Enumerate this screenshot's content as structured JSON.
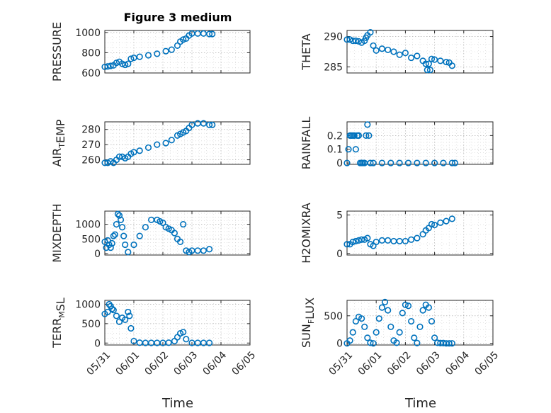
{
  "title": "Figure 3 medium",
  "xlabel": "Time",
  "xtick_labels": [
    "05/31",
    "06/01",
    "06/02",
    "06/03",
    "06/04",
    "06/05"
  ],
  "marker_color": "#0072BD",
  "chart_data": [
    {
      "type": "scatter",
      "ylabel_parts": [
        [
          "PRESSURE",
          ""
        ]
      ],
      "yticks": [
        600,
        800,
        1000
      ],
      "ytick_labels": [
        "600",
        "800",
        "1000"
      ],
      "ylim": [
        600,
        1020
      ],
      "x": [
        0,
        0.1,
        0.2,
        0.3,
        0.4,
        0.5,
        0.6,
        0.7,
        0.8,
        0.9,
        1.0,
        1.2,
        1.5,
        1.8,
        2.1,
        2.3,
        2.5,
        2.6,
        2.7,
        2.8,
        2.9,
        3.0,
        3.2,
        3.4,
        3.6,
        3.7
      ],
      "y": [
        660,
        665,
        670,
        675,
        700,
        710,
        690,
        680,
        690,
        740,
        750,
        760,
        775,
        790,
        815,
        830,
        870,
        910,
        930,
        940,
        970,
        990,
        990,
        990,
        985,
        985
      ]
    },
    {
      "type": "scatter",
      "ylabel_parts": [
        [
          "THETA",
          ""
        ]
      ],
      "yticks": [
        285,
        290
      ],
      "ytick_labels": [
        "285",
        "290"
      ],
      "ylim": [
        284,
        291
      ],
      "x": [
        0,
        0.1,
        0.2,
        0.3,
        0.4,
        0.5,
        0.6,
        0.65,
        0.7,
        0.8,
        0.9,
        1.0,
        1.2,
        1.4,
        1.6,
        1.8,
        2.0,
        2.2,
        2.4,
        2.6,
        2.7,
        2.75,
        2.8,
        2.85,
        2.9,
        3.0,
        3.2,
        3.4,
        3.5,
        3.6
      ],
      "y": [
        289.5,
        289.5,
        289.3,
        289.3,
        289.2,
        289.0,
        289.3,
        289.8,
        290.2,
        290.7,
        288.5,
        287.7,
        288.0,
        287.8,
        287.5,
        287.0,
        287.3,
        286.5,
        286.8,
        286.0,
        285.5,
        284.5,
        285.5,
        284.5,
        286.3,
        286.2,
        286.0,
        285.8,
        285.7,
        285.2
      ]
    },
    {
      "type": "scatter",
      "ylabel_parts": [
        [
          "AIR",
          "T"
        ],
        [
          "EMP",
          ""
        ]
      ],
      "yticks": [
        260,
        270,
        280
      ],
      "ytick_labels": [
        "260",
        "270",
        "280"
      ],
      "ylim": [
        257,
        285
      ],
      "x": [
        0,
        0.1,
        0.2,
        0.3,
        0.4,
        0.5,
        0.6,
        0.7,
        0.8,
        0.9,
        1.0,
        1.2,
        1.5,
        1.8,
        2.1,
        2.3,
        2.5,
        2.6,
        2.7,
        2.8,
        2.9,
        3.0,
        3.2,
        3.4,
        3.6,
        3.7
      ],
      "y": [
        258,
        258,
        259,
        258,
        260,
        262,
        262,
        261,
        262,
        264,
        265,
        266,
        268,
        270,
        271,
        273,
        276,
        277,
        278,
        279,
        281,
        283,
        284,
        284,
        283,
        283
      ]
    },
    {
      "type": "scatter",
      "ylabel_parts": [
        [
          "RAINFALL",
          ""
        ]
      ],
      "yticks": [
        0,
        0.1,
        0.2
      ],
      "ytick_labels": [
        "0",
        "0.1",
        "0.2"
      ],
      "ylim": [
        -0.01,
        0.3
      ],
      "x": [
        0,
        0.05,
        0.1,
        0.15,
        0.2,
        0.25,
        0.3,
        0.35,
        0.4,
        0.45,
        0.5,
        0.55,
        0.6,
        0.65,
        0.7,
        0.75,
        0.8,
        0.9,
        1.2,
        1.5,
        1.8,
        2.1,
        2.4,
        2.7,
        3.0,
        3.3,
        3.6,
        3.7
      ],
      "y": [
        0,
        0.1,
        0.2,
        0.2,
        0.2,
        0.2,
        0.1,
        0.2,
        0.2,
        0,
        0,
        0,
        0,
        0.2,
        0.28,
        0.2,
        0,
        0,
        0,
        0,
        0,
        0,
        0,
        0,
        0,
        0,
        0,
        0
      ]
    },
    {
      "type": "scatter",
      "ylabel_parts": [
        [
          "MIXDEPTH",
          ""
        ]
      ],
      "yticks": [
        0,
        500,
        1000
      ],
      "ytick_labels": [
        "0",
        "500",
        "1000"
      ],
      "ylim": [
        -50,
        1450
      ],
      "x": [
        0,
        0.05,
        0.1,
        0.15,
        0.2,
        0.25,
        0.3,
        0.35,
        0.4,
        0.45,
        0.5,
        0.55,
        0.6,
        0.65,
        0.7,
        0.8,
        1.0,
        1.2,
        1.4,
        1.6,
        1.8,
        1.9,
        2.0,
        2.1,
        2.2,
        2.3,
        2.4,
        2.5,
        2.6,
        2.7,
        2.8,
        2.9,
        3.0,
        3.2,
        3.4,
        3.6
      ],
      "y": [
        400,
        200,
        450,
        300,
        200,
        350,
        600,
        650,
        1000,
        1350,
        1300,
        1150,
        900,
        600,
        300,
        50,
        300,
        600,
        900,
        1150,
        1150,
        1100,
        1050,
        900,
        850,
        800,
        700,
        500,
        400,
        1000,
        100,
        50,
        100,
        100,
        100,
        150
      ]
    },
    {
      "type": "scatter",
      "ylabel_parts": [
        [
          "H2OMIXRA",
          ""
        ]
      ],
      "yticks": [
        0,
        5
      ],
      "ytick_labels": [
        "0",
        "5"
      ],
      "ylim": [
        -0.2,
        5.5
      ],
      "x": [
        0,
        0.1,
        0.2,
        0.3,
        0.4,
        0.5,
        0.6,
        0.7,
        0.8,
        0.9,
        1.0,
        1.2,
        1.4,
        1.6,
        1.8,
        2.0,
        2.2,
        2.4,
        2.6,
        2.7,
        2.8,
        2.9,
        3.0,
        3.2,
        3.4,
        3.6
      ],
      "y": [
        1.2,
        1.2,
        1.5,
        1.6,
        1.7,
        1.8,
        1.8,
        2.0,
        1.2,
        1.0,
        1.5,
        1.7,
        1.7,
        1.6,
        1.6,
        1.6,
        1.8,
        2.0,
        2.5,
        3.0,
        3.3,
        3.8,
        3.7,
        4.0,
        4.2,
        4.5
      ]
    },
    {
      "type": "scatter",
      "ylabel_parts": [
        [
          "TERR",
          "M"
        ],
        [
          "SL",
          ""
        ]
      ],
      "yticks": [
        0,
        500,
        1000
      ],
      "ytick_labels": [
        "0",
        "500",
        "1000"
      ],
      "ylim": [
        -50,
        1100
      ],
      "x": [
        0,
        0.1,
        0.15,
        0.2,
        0.25,
        0.3,
        0.4,
        0.5,
        0.6,
        0.7,
        0.8,
        0.85,
        0.9,
        1.0,
        1.2,
        1.4,
        1.6,
        1.8,
        2.0,
        2.2,
        2.4,
        2.5,
        2.6,
        2.7,
        2.8,
        3.0,
        3.2,
        3.4,
        3.6
      ],
      "y": [
        750,
        800,
        1000,
        950,
        880,
        850,
        700,
        550,
        650,
        600,
        800,
        700,
        380,
        50,
        10,
        5,
        5,
        5,
        5,
        10,
        50,
        150,
        250,
        280,
        100,
        5,
        5,
        5,
        5
      ]
    },
    {
      "type": "scatter",
      "ylabel_parts": [
        [
          "SUN",
          "F"
        ],
        [
          "LUX",
          ""
        ]
      ],
      "yticks": [
        0,
        500
      ],
      "ytick_labels": [
        "0",
        "500"
      ],
      "ylim": [
        -30,
        780
      ],
      "x": [
        0,
        0.1,
        0.2,
        0.3,
        0.4,
        0.5,
        0.6,
        0.7,
        0.8,
        0.9,
        1.0,
        1.1,
        1.2,
        1.3,
        1.4,
        1.5,
        1.6,
        1.7,
        1.8,
        1.9,
        2.0,
        2.1,
        2.2,
        2.3,
        2.4,
        2.5,
        2.6,
        2.7,
        2.8,
        2.9,
        3.0,
        3.1,
        3.2,
        3.3,
        3.4,
        3.5,
        3.6
      ],
      "y": [
        0,
        50,
        200,
        400,
        480,
        450,
        300,
        100,
        10,
        0,
        200,
        450,
        650,
        750,
        600,
        300,
        50,
        10,
        200,
        550,
        700,
        680,
        400,
        100,
        5,
        300,
        600,
        700,
        650,
        400,
        100,
        10,
        5,
        5,
        0,
        0,
        0
      ]
    }
  ]
}
